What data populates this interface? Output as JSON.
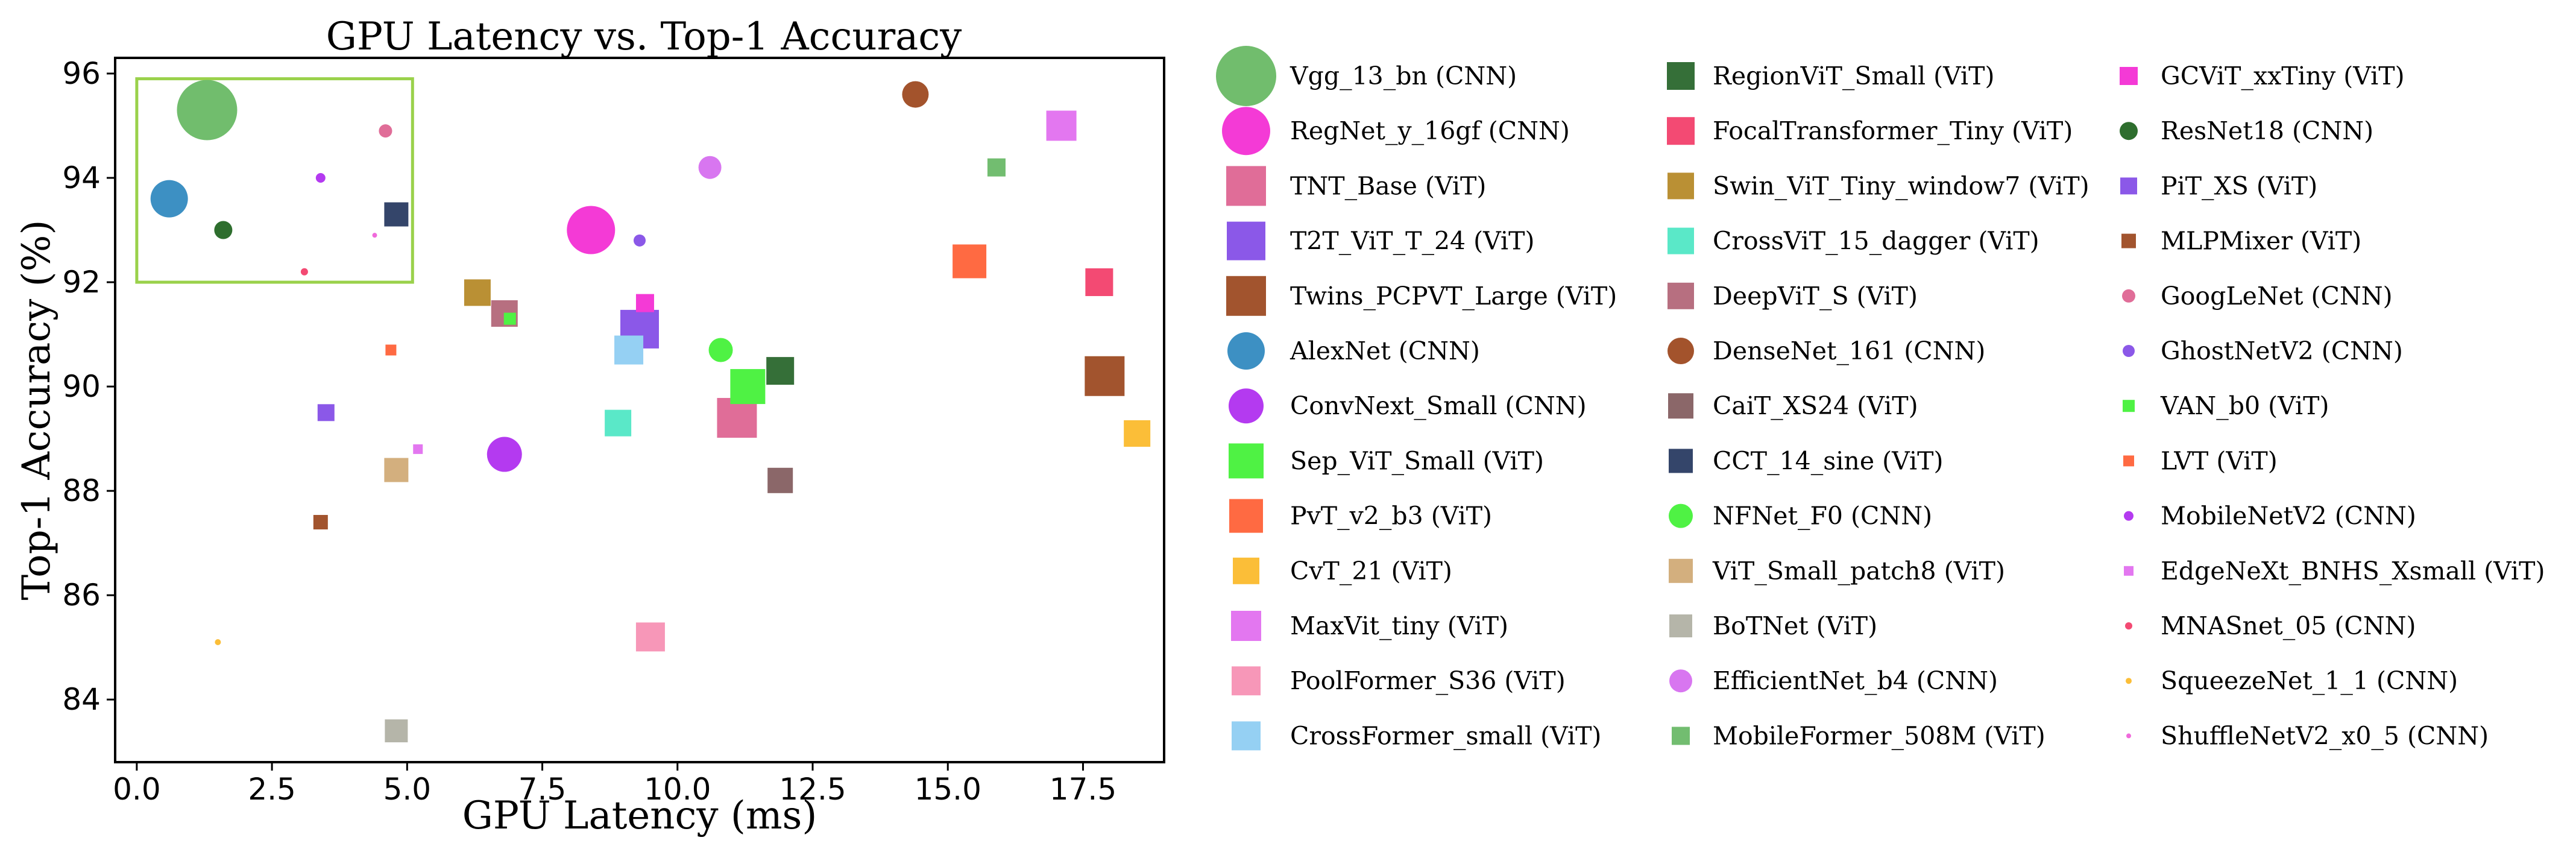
{
  "chart_data": {
    "type": "scatter",
    "title": "GPU Latency vs. Top-1 Accuracy",
    "xlabel": "GPU Latency (ms)",
    "ylabel": "Top-1 Accuracy (%)",
    "xlim": [
      -0.4,
      19.0
    ],
    "ylim": [
      82.8,
      96.3
    ],
    "xticks": [
      0.0,
      2.5,
      5.0,
      7.5,
      10.0,
      12.5,
      15.0,
      17.5
    ],
    "xtick_labels": [
      "0.0",
      "2.5",
      "5.0",
      "7.5",
      "10.0",
      "12.5",
      "15.0",
      "17.5"
    ],
    "yticks": [
      84,
      86,
      88,
      90,
      92,
      94,
      96
    ],
    "ytick_labels": [
      "84",
      "86",
      "88",
      "90",
      "92",
      "94",
      "96"
    ],
    "grid": false,
    "legend_position": "outside-right",
    "highlight_box": {
      "x_range": [
        0.0,
        5.1
      ],
      "y_range": [
        92.0,
        95.9
      ],
      "color": "#9ad14b"
    },
    "series": [
      {
        "name": "Vgg_13_bn (CNN)",
        "family": "CNN",
        "marker": "circle",
        "color": "#71bd6d",
        "x": 1.3,
        "y": 95.3,
        "size": 100
      },
      {
        "name": "RegNet_y_16gf (CNN)",
        "family": "CNN",
        "marker": "circle",
        "color": "#f43ad6",
        "x": 8.4,
        "y": 93.0,
        "size": 80
      },
      {
        "name": "TNT_Base (ViT)",
        "family": "ViT",
        "marker": "square",
        "color": "#e06d98",
        "x": 11.1,
        "y": 89.4,
        "size": 66
      },
      {
        "name": "T2T_ViT_T_24 (ViT)",
        "family": "ViT",
        "marker": "square",
        "color": "#8b58e8",
        "x": 9.3,
        "y": 91.1,
        "size": 64
      },
      {
        "name": "Twins_PCPVT_Large (ViT)",
        "family": "ViT",
        "marker": "square",
        "color": "#a2542e",
        "x": 17.9,
        "y": 90.2,
        "size": 66
      },
      {
        "name": "AlexNet (CNN)",
        "family": "CNN",
        "marker": "circle",
        "color": "#3d90c3",
        "x": 0.6,
        "y": 93.6,
        "size": 62
      },
      {
        "name": "ConvNext_Small (CNN)",
        "family": "CNN",
        "marker": "circle",
        "color": "#b43af0",
        "x": 6.8,
        "y": 88.7,
        "size": 58
      },
      {
        "name": "Sep_ViT_Small (ViT)",
        "family": "ViT",
        "marker": "square",
        "color": "#4ff244",
        "x": 11.3,
        "y": 90.0,
        "size": 58
      },
      {
        "name": "PvT_v2_b3 (ViT)",
        "family": "ViT",
        "marker": "square",
        "color": "#ff6a42",
        "x": 15.4,
        "y": 92.4,
        "size": 56
      },
      {
        "name": "CvT_21 (ViT)",
        "family": "ViT",
        "marker": "square",
        "color": "#fbbe38",
        "x": 18.5,
        "y": 89.1,
        "size": 44
      },
      {
        "name": "MaxVit_tiny (ViT)",
        "family": "ViT",
        "marker": "square",
        "color": "#e377f0",
        "x": 17.1,
        "y": 95.0,
        "size": 50
      },
      {
        "name": "PoolFormer_S36 (ViT)",
        "family": "ViT",
        "marker": "square",
        "color": "#f797b8",
        "x": 9.5,
        "y": 85.2,
        "size": 48
      },
      {
        "name": "CrossFormer_small (ViT)",
        "family": "ViT",
        "marker": "square",
        "color": "#95d0f3",
        "x": 9.1,
        "y": 90.7,
        "size": 48
      },
      {
        "name": "RegionViT_Small (ViT)",
        "family": "ViT",
        "marker": "square",
        "color": "#356f38",
        "x": 11.9,
        "y": 90.3,
        "size": 46
      },
      {
        "name": "FocalTransformer_Tiny (ViT)",
        "family": "ViT",
        "marker": "square",
        "color": "#f34a73",
        "x": 17.8,
        "y": 92.0,
        "size": 46
      },
      {
        "name": "Swin_ViT_Tiny_window7 (ViT)",
        "family": "ViT",
        "marker": "square",
        "color": "#ba9034",
        "x": 6.3,
        "y": 91.8,
        "size": 44
      },
      {
        "name": "CrossViT_15_dagger (ViT)",
        "family": "ViT",
        "marker": "square",
        "color": "#5ae8c8",
        "x": 8.9,
        "y": 89.3,
        "size": 44
      },
      {
        "name": "DeepViT_S (ViT)",
        "family": "ViT",
        "marker": "square",
        "color": "#b76f80",
        "x": 6.8,
        "y": 91.4,
        "size": 44
      },
      {
        "name": "DenseNet_161 (CNN)",
        "family": "CNN",
        "marker": "circle",
        "color": "#a3532c",
        "x": 14.4,
        "y": 95.6,
        "size": 44
      },
      {
        "name": "CaiT_XS24 (ViT)",
        "family": "ViT",
        "marker": "square",
        "color": "#8b6769",
        "x": 11.9,
        "y": 88.2,
        "size": 42
      },
      {
        "name": "CCT_14_sine (ViT)",
        "family": "ViT",
        "marker": "square",
        "color": "#34456a",
        "x": 4.8,
        "y": 93.3,
        "size": 40
      },
      {
        "name": "NFNet_F0 (CNN)",
        "family": "CNN",
        "marker": "circle",
        "color": "#4ff244",
        "x": 10.8,
        "y": 90.7,
        "size": 40
      },
      {
        "name": "ViT_Small_patch8 (ViT)",
        "family": "ViT",
        "marker": "square",
        "color": "#d3af7e",
        "x": 4.8,
        "y": 88.4,
        "size": 40
      },
      {
        "name": "BoTNet (ViT)",
        "family": "ViT",
        "marker": "square",
        "color": "#b5b5a9",
        "x": 4.8,
        "y": 83.4,
        "size": 38
      },
      {
        "name": "EfficientNet_b4 (CNN)",
        "family": "CNN",
        "marker": "circle",
        "color": "#d876f0",
        "x": 10.6,
        "y": 94.2,
        "size": 38
      },
      {
        "name": "MobileFormer_508M (ViT)",
        "family": "ViT",
        "marker": "square",
        "color": "#72bd70",
        "x": 15.9,
        "y": 94.2,
        "size": 30
      },
      {
        "name": "GCViT_xxTiny (ViT)",
        "family": "ViT",
        "marker": "square",
        "color": "#f43ad6",
        "x": 9.4,
        "y": 91.6,
        "size": 30
      },
      {
        "name": "ResNet18 (CNN)",
        "family": "CNN",
        "marker": "circle",
        "color": "#2e6e2e",
        "x": 1.6,
        "y": 93.0,
        "size": 30
      },
      {
        "name": "PiT_XS (ViT)",
        "family": "ViT",
        "marker": "square",
        "color": "#8b58e8",
        "x": 3.5,
        "y": 89.5,
        "size": 28
      },
      {
        "name": "MLPMixer (ViT)",
        "family": "ViT",
        "marker": "square",
        "color": "#a2542e",
        "x": 3.4,
        "y": 87.4,
        "size": 24
      },
      {
        "name": "GoogLeNet (CNN)",
        "family": "CNN",
        "marker": "circle",
        "color": "#e06d98",
        "x": 4.6,
        "y": 94.9,
        "size": 22
      },
      {
        "name": "GhostNetV2 (CNN)",
        "family": "CNN",
        "marker": "circle",
        "color": "#8b58e8",
        "x": 9.3,
        "y": 92.8,
        "size": 20
      },
      {
        "name": "VAN_b0 (ViT)",
        "family": "ViT",
        "marker": "square",
        "color": "#4ff244",
        "x": 6.9,
        "y": 91.3,
        "size": 20
      },
      {
        "name": "LVT (ViT)",
        "family": "ViT",
        "marker": "square",
        "color": "#ff6a42",
        "x": 4.7,
        "y": 90.7,
        "size": 18
      },
      {
        "name": "MobileNetV2 (CNN)",
        "family": "CNN",
        "marker": "circle",
        "color": "#b43af0",
        "x": 3.4,
        "y": 94.0,
        "size": 16
      },
      {
        "name": "EdgeNeXt_BNHS_Xsmall (ViT)",
        "family": "ViT",
        "marker": "square",
        "color": "#e377f0",
        "x": 5.2,
        "y": 88.8,
        "size": 16
      },
      {
        "name": "MNASnet_05 (CNN)",
        "family": "CNN",
        "marker": "circle",
        "color": "#f34a73",
        "x": 3.1,
        "y": 92.2,
        "size": 12
      },
      {
        "name": "SqueezeNet_1_1 (CNN)",
        "family": "CNN",
        "marker": "circle",
        "color": "#fbbe38",
        "x": 1.5,
        "y": 85.1,
        "size": 10
      },
      {
        "name": "ShuffleNetV2_x0_5 (CNN)",
        "family": "CNN",
        "marker": "circle",
        "color": "#f06adb",
        "x": 4.4,
        "y": 92.9,
        "size": 8
      }
    ]
  }
}
